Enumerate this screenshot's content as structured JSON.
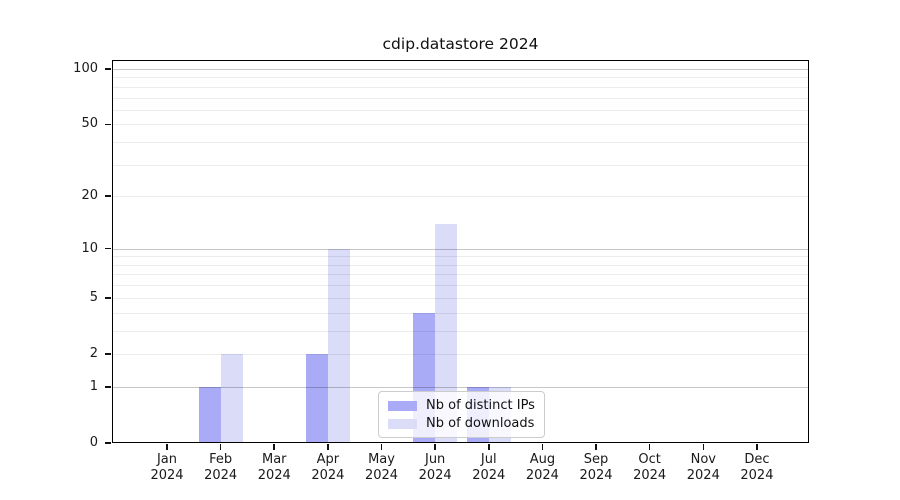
{
  "chart_data": {
    "type": "bar",
    "title": "cdip.datastore 2024",
    "categories": [
      "Jan",
      "Feb",
      "Mar",
      "Apr",
      "May",
      "Jun",
      "Jul",
      "Aug",
      "Sep",
      "Oct",
      "Nov",
      "Dec"
    ],
    "category_year": "2024",
    "series": [
      {
        "key": "distinct-ips",
        "name": "Nb of distinct IPs",
        "color": "#a9abf6",
        "values": [
          0,
          1,
          0,
          2,
          0,
          4,
          1,
          0,
          0,
          0,
          0,
          0
        ]
      },
      {
        "key": "downloads",
        "name": "Nb of downloads",
        "color": "#dadcf8",
        "values": [
          0,
          2,
          0,
          10,
          0,
          14,
          1,
          0,
          0,
          0,
          0,
          0
        ]
      }
    ],
    "y_scale": "log1p",
    "y_ticks": [
      0,
      1,
      2,
      5,
      10,
      20,
      50,
      100
    ],
    "y_major_gridlines": [
      1,
      10,
      100
    ],
    "y_minor_gridlines": [
      2,
      3,
      4,
      5,
      6,
      7,
      8,
      9,
      20,
      30,
      40,
      50,
      60,
      70,
      80,
      90
    ],
    "ylim": [
      0,
      112
    ],
    "grid": true,
    "legend_position": "bottom-center"
  },
  "legend": {
    "items": [
      {
        "label": "Nb of distinct IPs",
        "color": "#a9abf6"
      },
      {
        "label": "Nb of downloads",
        "color": "#dadcf8"
      }
    ]
  },
  "colors": {
    "background": "#ffffff",
    "axis": "#000000",
    "grid_minor": "#ededed",
    "grid_major": "#c8c8c8",
    "text": "#1a1a1a"
  }
}
